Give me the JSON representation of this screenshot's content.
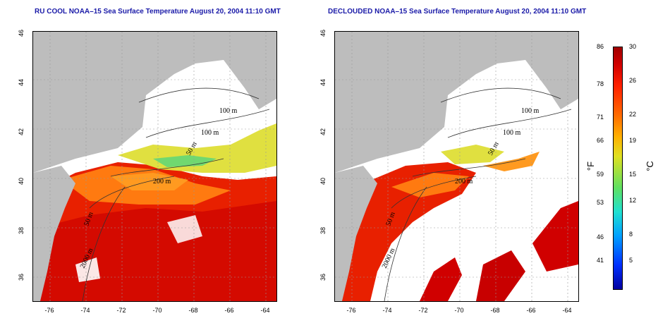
{
  "titles": {
    "left": "RU COOL NOAA–15 Sea Surface Temperature August 20, 2004 11:10 GMT",
    "right": "DECLOUDED NOAA–15 Sea Surface Temperature August 20, 2004 11:10 GMT"
  },
  "axes": {
    "lat_ticks": [
      "46",
      "44",
      "42",
      "40",
      "38",
      "36"
    ],
    "lon_ticks": [
      "-76",
      "-74",
      "-72",
      "-70",
      "-68",
      "-66",
      "-64"
    ]
  },
  "contour_labels": {
    "left": [
      "100 m",
      "100 m",
      "50 m",
      "200 m",
      "50 m",
      "2000 m"
    ],
    "right": [
      "100 m",
      "100 m",
      "50 m",
      "200 m",
      "50 m",
      "2000 m"
    ]
  },
  "colorbar": {
    "fahrenheit_ticks": [
      "86",
      "78",
      "71",
      "66",
      "59",
      "53",
      "46",
      "41"
    ],
    "celsius_ticks": [
      "30",
      "26",
      "22",
      "19",
      "15",
      "12",
      "8",
      "5"
    ],
    "unit_f": "°F",
    "unit_c": "°C"
  },
  "colors": {
    "land": "#bdbdbd",
    "warm": "#e82000",
    "hot": "#c80000",
    "mid": "#ff7a10",
    "cool_yellow": "#e0e040",
    "cool_green": "#70d870",
    "cloud": "#ffffff",
    "title": "#1a1aa8"
  }
}
